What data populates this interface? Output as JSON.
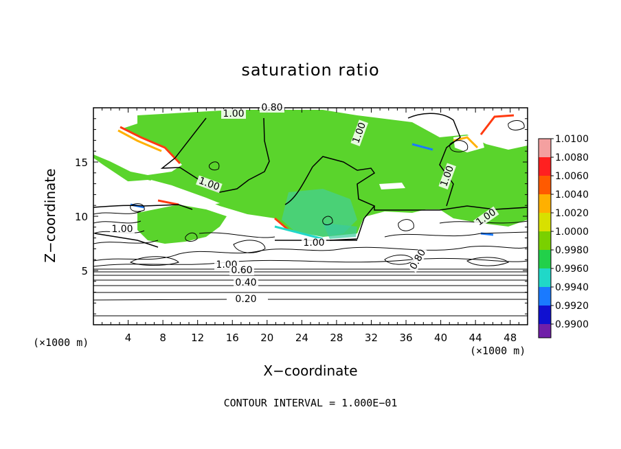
{
  "chart_data": {
    "type": "heatmap",
    "title": "saturation ratio",
    "xlabel": "X−coordinate",
    "ylabel": "Z−coordinate",
    "x_unit": "(×1000 m)",
    "x_unit_right": "(×1000 m)",
    "xlim": [
      0,
      50
    ],
    "ylim": [
      0,
      20
    ],
    "x_ticks": [
      4,
      8,
      12,
      16,
      20,
      24,
      28,
      32,
      36,
      40,
      44,
      48
    ],
    "y_ticks": [
      5,
      10,
      15
    ],
    "colorbar": {
      "levels": [
        "1.0100",
        "1.0080",
        "1.0060",
        "1.0040",
        "1.0020",
        "1.0000",
        "0.9980",
        "0.9960",
        "0.9940",
        "0.9920",
        "0.9900"
      ],
      "colors": [
        "#f4a0a0",
        "#ff2020",
        "#ff5a00",
        "#ffb000",
        "#d8e000",
        "#7ad000",
        "#22d04a",
        "#20d8c8",
        "#1a7aff",
        "#1010d0",
        "#7020a8"
      ]
    },
    "contour_labels": [
      "1.00",
      "0.80",
      "0.60",
      "0.40",
      "0.20"
    ],
    "contour_interval_text": "CONTOUR INTERVAL = 1.000E−01"
  }
}
